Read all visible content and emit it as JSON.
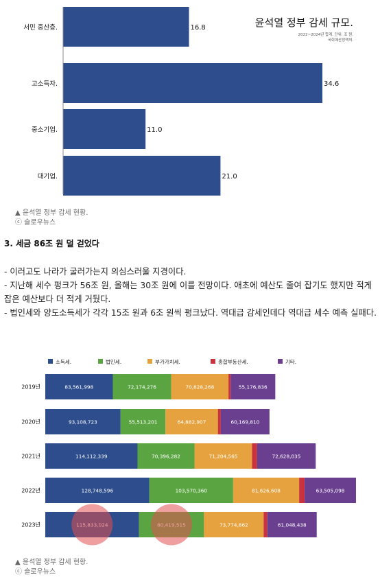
{
  "chart1": {
    "type": "bar",
    "orientation": "horizontal",
    "title": "윤석열 정부 감세 규모.",
    "subtitle_lines": [
      "2022~2024년 합계. 단위: 조 원.",
      "국회예산정책처."
    ],
    "categories": [
      "서민 중산층.",
      "고소득자.",
      "중소기업.",
      "대기업."
    ],
    "values": [
      16.8,
      34.6,
      11.0,
      21.0
    ],
    "value_labels": [
      "16.8",
      "34.6",
      "11.0",
      "21.0"
    ],
    "xlim": [
      0,
      38
    ],
    "bar_color": "#2d4d8c"
  },
  "caption1": {
    "line1": "▲ 윤석열 정부 감세 현황.",
    "line2": "ⓒ 슬로우뉴스"
  },
  "section": {
    "heading": "3. 세금 86조 원 덜 걷었다",
    "paragraphs": [
      "- 이러고도 나라가 굴러가는지 의심스러울 지경이다.",
      "- 지난해 세수 펑크가 56조 원, 올해는 30조 원에 이를 전망이다. 애초에 예산도 줄여 잡기도 했지만 적게 잡은 예산보다 더 적게 거뒀다.",
      "- 법인세와 양도소득세가 각각 15조 원과 6조 원씩 펑크났다. 역대급 감세인데다 역대급 세수 예측 실패다."
    ]
  },
  "chart_data": {
    "type": "bar",
    "orientation": "horizontal",
    "stacked": true,
    "categories": [
      "2019년",
      "2020년",
      "2021년",
      "2022년",
      "2023년"
    ],
    "legend_position": "top",
    "series": [
      {
        "name": "소득세.",
        "color": "#2d4d8c",
        "values": [
          83561998,
          93108723,
          114112339,
          128748596,
          115833024
        ],
        "labels": [
          "83,561,998",
          "93,108,723",
          "114,112,339",
          "128,748,596",
          "115,833,024"
        ]
      },
      {
        "name": "법인세.",
        "color": "#5aa542",
        "values": [
          72174276,
          55513201,
          70396282,
          103570360,
          80419515
        ],
        "labels": [
          "72,174,276",
          "55,513,201",
          "70,396,282",
          "103,570,360",
          "80,419,515"
        ]
      },
      {
        "name": "부가가치세.",
        "color": "#e6a23e",
        "values": [
          70828268,
          64882907,
          71204565,
          81626608,
          73774862
        ],
        "labels": [
          "70,828,268",
          "64,882,907",
          "71,204,565",
          "81,626,608",
          "73,774,862"
        ]
      },
      {
        "name": "종합부동산세.",
        "color": "#c9333f",
        "values": [
          2700000,
          3600000,
          6100000,
          6800000,
          4600000
        ],
        "labels": [
          "",
          "",
          "",
          "",
          ""
        ]
      },
      {
        "name": "기타.",
        "color": "#6a3f8f",
        "values": [
          55176836,
          60169810,
          72628035,
          63505098,
          61048438
        ],
        "labels": [
          "55,176,836",
          "60,169,810",
          "72,628,035",
          "63,505,098",
          "61,048,438"
        ]
      }
    ],
    "highlights": [
      {
        "category": "2023년",
        "series": "소득세."
      },
      {
        "category": "2023년",
        "series": "법인세."
      }
    ]
  },
  "caption2": {
    "line1": "▲ 윤석열 정부 감세 현황.",
    "line2": "ⓒ 슬로우뉴스"
  }
}
